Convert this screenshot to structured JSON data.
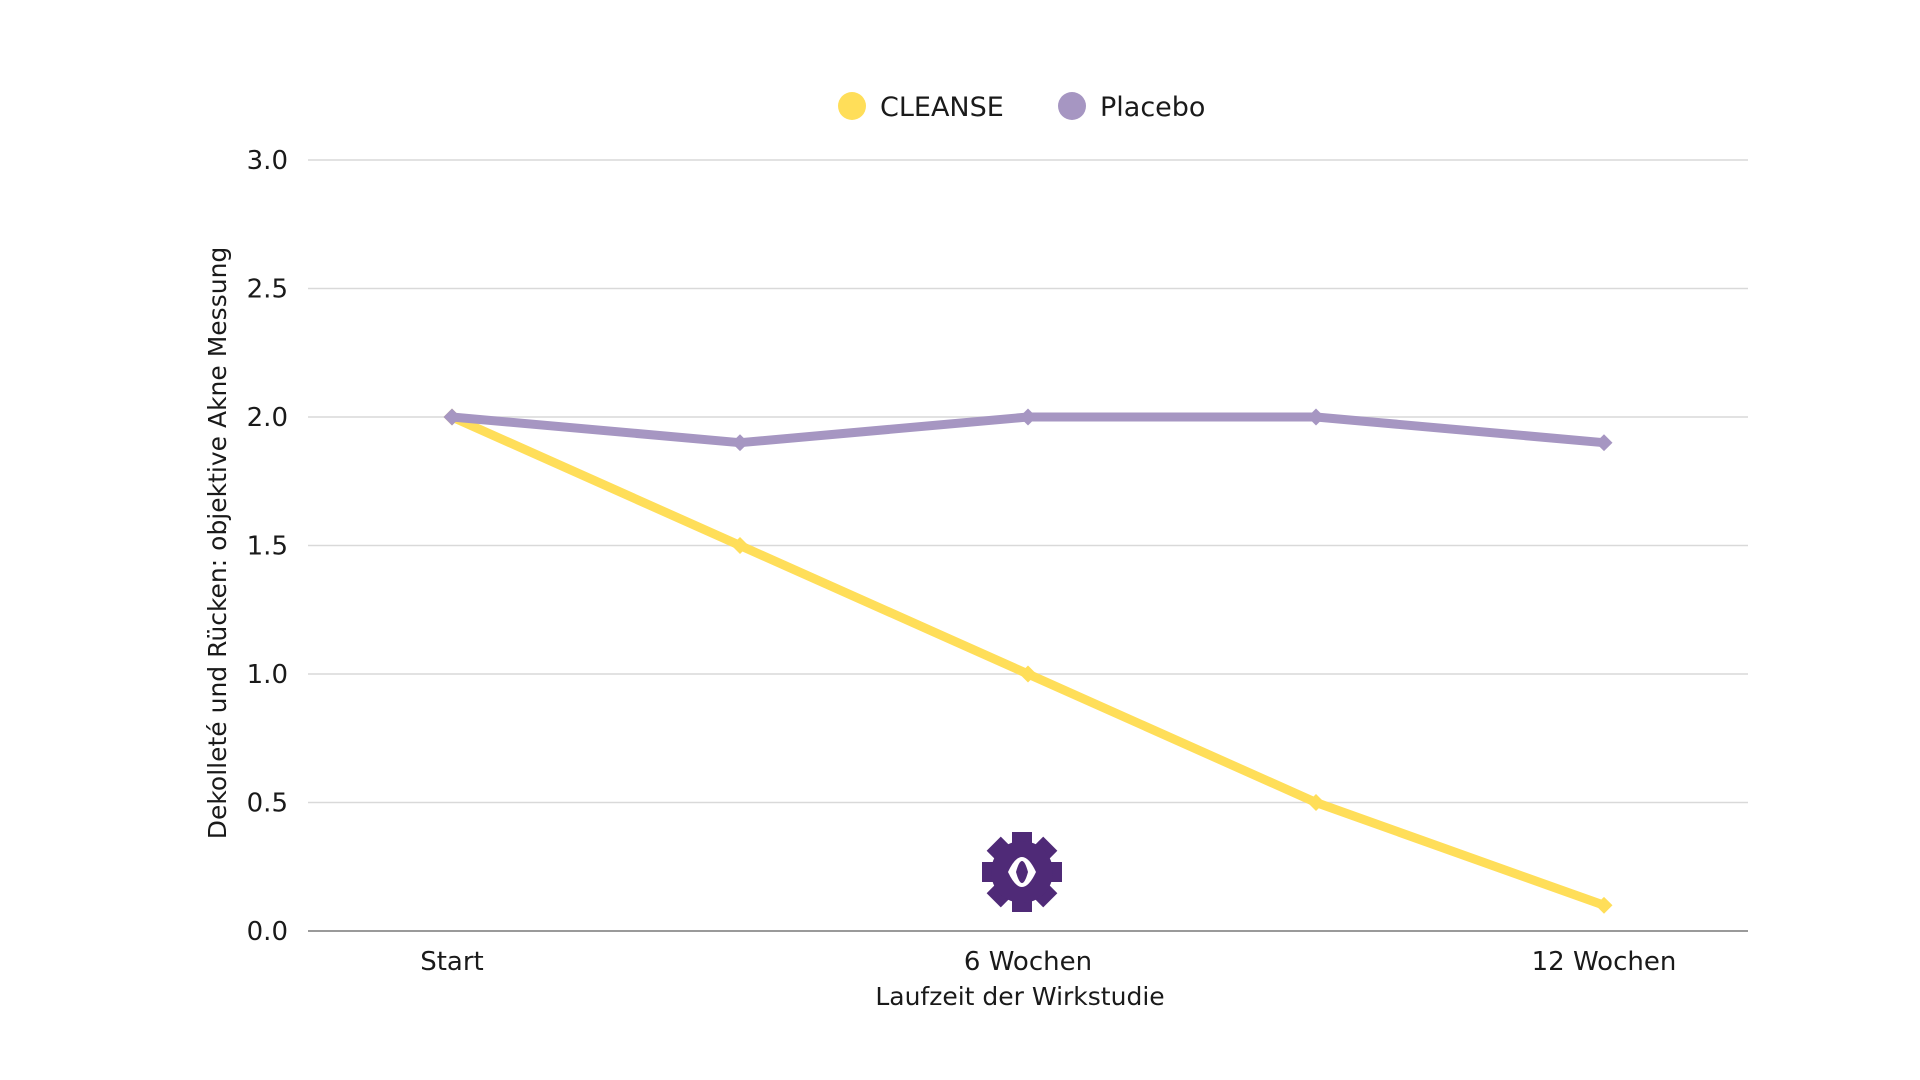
{
  "colors": {
    "cleanse": "#FFDE59",
    "placebo": "#A696C2",
    "logo": "#4F2A77",
    "grid": "#d9d9d9",
    "axis": "#9a9a9a",
    "text": "#1a1a1a"
  },
  "legend": {
    "items": [
      {
        "label": "CLEANSE",
        "color": "#FFDE59"
      },
      {
        "label": "Placebo",
        "color": "#A696C2"
      }
    ],
    "position": "top-center"
  },
  "logo": {
    "icon": "gear-eye-logo-icon"
  },
  "chart_data": {
    "type": "line",
    "title": "",
    "xlabel": "Laufzeit der Wirkstudie",
    "ylabel": "Dekolleté und Rücken: objektive Akne Messung",
    "x_positions": [
      "Start",
      "",
      "6 Wochen",
      "",
      "12 Wochen"
    ],
    "x_tick_labels": [
      "Start",
      "6 Wochen",
      "12 Wochen"
    ],
    "y_ticks": [
      "0.0",
      "0.5",
      "1.0",
      "1.5",
      "2.0",
      "2.5",
      "3.0"
    ],
    "ylim": [
      0,
      3
    ],
    "grid": true,
    "legend_placement": "top-center",
    "series": [
      {
        "name": "CLEANSE",
        "color": "#FFDE59",
        "values": [
          2.0,
          1.5,
          1.0,
          0.5,
          0.1
        ]
      },
      {
        "name": "Placebo",
        "color": "#A696C2",
        "values": [
          2.0,
          1.9,
          2.0,
          2.0,
          1.9
        ]
      }
    ]
  }
}
